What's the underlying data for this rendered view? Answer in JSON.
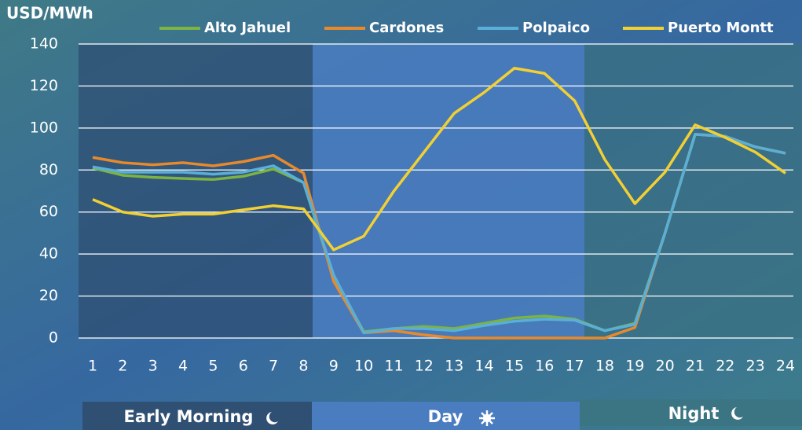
{
  "chart_data": {
    "type": "line",
    "y_axis_label": "USD/MWh",
    "categories": [
      1,
      2,
      3,
      4,
      5,
      6,
      7,
      8,
      9,
      10,
      11,
      12,
      13,
      14,
      15,
      16,
      17,
      18,
      19,
      20,
      21,
      22,
      23,
      24
    ],
    "series": [
      {
        "name": "Alto Jahuel",
        "color": "#7cb342",
        "values": [
          81,
          77.5,
          76.5,
          76,
          75.5,
          77,
          80.5,
          74,
          29,
          3,
          4.5,
          5.5,
          4.5,
          7,
          9.5,
          10.5,
          9,
          3.5,
          7,
          50,
          97,
          96,
          91,
          88
        ]
      },
      {
        "name": "Cardones",
        "color": "#e8892b",
        "values": [
          86,
          83.5,
          82.5,
          83.5,
          82,
          84,
          87,
          78.5,
          27,
          2.5,
          3.5,
          1.5,
          0,
          0,
          0,
          0,
          0,
          0,
          5,
          50,
          97,
          96,
          91,
          88
        ]
      },
      {
        "name": "Polpaico",
        "color": "#5aafd8",
        "values": [
          81.5,
          79,
          79,
          79,
          78,
          79,
          82,
          74,
          30,
          2.5,
          4.5,
          4.5,
          3.5,
          6,
          8,
          9,
          8.5,
          3.5,
          6.5,
          50,
          97,
          96,
          91,
          88
        ]
      },
      {
        "name": "Puerto Montt",
        "color": "#f2d033",
        "values": [
          66,
          60,
          58,
          59,
          59,
          61,
          63,
          61.5,
          42,
          48.5,
          70,
          88.5,
          107,
          117,
          128.5,
          126,
          113,
          85,
          64,
          79,
          101.5,
          95.5,
          88.5,
          78.5
        ]
      }
    ],
    "periods": [
      "Early Morning",
      "Day",
      "Night"
    ],
    "ylim": [
      0,
      140
    ],
    "yticks": [
      0,
      20,
      40,
      60,
      80,
      100,
      120,
      140
    ],
    "grid": true
  }
}
